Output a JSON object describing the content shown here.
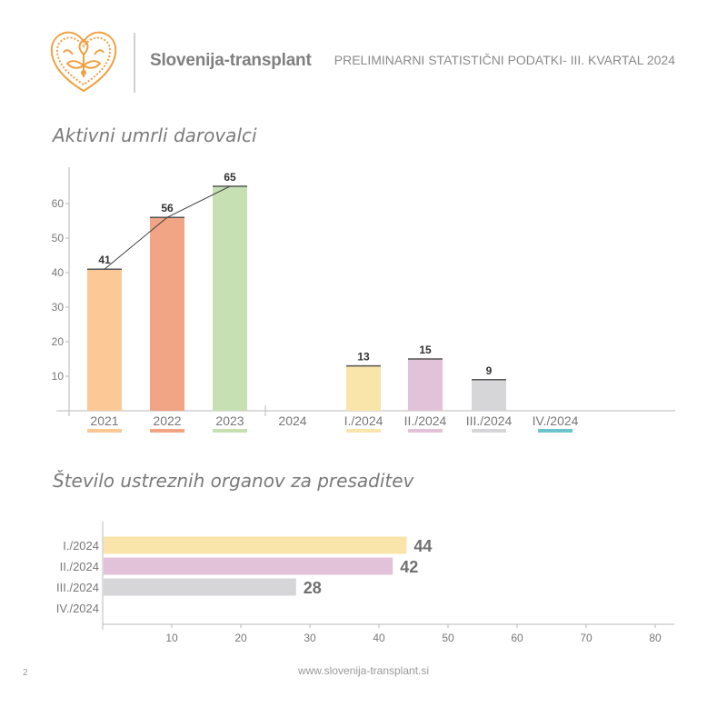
{
  "header": {
    "brand": "Slovenija-transplant",
    "subtitle_prefix": "PRELIMINARNI STATISTIČNI PODATKI- ",
    "subtitle_bold": "III. KVARTAL 2024"
  },
  "logo": {
    "icon": "heart-flower-logo",
    "color": "#f0a040"
  },
  "footer": {
    "page_number": "2",
    "url": "www.slovenija-transplant.si"
  },
  "sections": {
    "donors_title": "Aktivni umrli darovalci",
    "organs_title": "Število ustreznih organov za presaditev"
  },
  "chart_data": [
    {
      "type": "bar",
      "title": "Aktivni umrli darovalci",
      "categories": [
        "2021",
        "2022",
        "2023",
        "2024",
        "I./2024",
        "II./2024",
        "III./2024",
        "IV./2024"
      ],
      "values": [
        41,
        56,
        65,
        null,
        13,
        15,
        9,
        null
      ],
      "value_labels": [
        "41",
        "56",
        "65",
        "",
        "13",
        "15",
        "9",
        ""
      ],
      "colors": [
        "#fbc896",
        "#f2a585",
        "#c6e0b4",
        "#ffffff",
        "#f9e4a9",
        "#e2c2d9",
        "#d6d6d8",
        "#6cc5cc"
      ],
      "ylim": [
        0,
        70
      ],
      "yticks": [
        "10",
        "20",
        "30",
        "40",
        "50",
        "60"
      ],
      "trend_line": [
        41,
        56,
        65
      ],
      "grid": false,
      "legend": "color-swatches-under-categories"
    },
    {
      "type": "bar",
      "orientation": "horizontal",
      "title": "Število ustreznih organov za presaditev",
      "categories": [
        "I./2024",
        "II./2024",
        "III./2024",
        "IV./2024"
      ],
      "values": [
        44,
        42,
        28,
        null
      ],
      "value_labels": [
        "44",
        "42",
        "28",
        ""
      ],
      "colors": [
        "#f9e4a9",
        "#e2c2d9",
        "#d6d6d8",
        "#6cc5cc"
      ],
      "xlim": [
        0,
        80
      ],
      "xticks": [
        "10",
        "20",
        "30",
        "40",
        "50",
        "60",
        "70",
        "80"
      ],
      "grid": false
    }
  ]
}
